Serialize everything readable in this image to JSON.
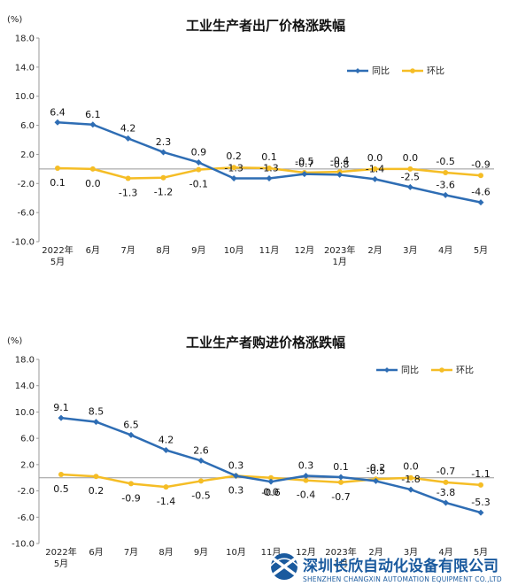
{
  "colors": {
    "yoy": "#2e6db4",
    "mom": "#f5bd25",
    "axis": "#999999",
    "watermark": "#1a5a9e"
  },
  "chart_data": [
    {
      "type": "line",
      "title": "工业生产者出厂价格涨跌幅",
      "unit": "(%)",
      "categories": [
        "2022年|5月",
        "6月",
        "7月",
        "8月",
        "9月",
        "10月",
        "11月",
        "12月",
        "2023年|1月",
        "2月",
        "3月",
        "4月",
        "5月"
      ],
      "ylim": [
        -10.0,
        18.0
      ],
      "yticks": [
        "18.0",
        "14.0",
        "10.0",
        "6.0",
        "2.0",
        "-2.0",
        "-6.0",
        "-10.0"
      ],
      "legend": {
        "position": "top-right"
      },
      "series": [
        {
          "name": "同比",
          "values": [
            6.4,
            6.1,
            4.2,
            2.3,
            0.9,
            -1.3,
            -1.3,
            -0.7,
            -0.8,
            -1.4,
            -2.5,
            -3.6,
            -4.6
          ],
          "labels": [
            "6.4",
            "6.1",
            "4.2",
            "2.3",
            "0.9",
            "-1.3",
            "-1.3",
            "-0.7",
            "-0.8",
            "-1.4",
            "-2.5",
            "-3.6",
            "-4.6"
          ]
        },
        {
          "name": "环比",
          "values": [
            0.1,
            0.0,
            -1.3,
            -1.2,
            -0.1,
            0.2,
            0.1,
            -0.5,
            -0.4,
            0.0,
            0.0,
            -0.5,
            -0.9
          ],
          "labels": [
            "0.1",
            "0.0",
            "-1.3",
            "-1.2",
            "-0.1",
            "0.2",
            "0.1",
            "-0.5",
            "-0.4",
            "0.0",
            "0.0",
            "-0.5",
            "-0.9"
          ]
        }
      ]
    },
    {
      "type": "line",
      "title": "工业生产者购进价格涨跌幅",
      "unit": "(%)",
      "categories": [
        "2022年|5月",
        "6月",
        "7月",
        "8月",
        "9月",
        "10月",
        "11月",
        "12月",
        "2023年|1月",
        "2月",
        "3月",
        "4月",
        "5月"
      ],
      "ylim": [
        -10.0,
        18.0
      ],
      "yticks": [
        "18.0",
        "14.0",
        "10.0",
        "6.0",
        "2.0",
        "-2.0",
        "-6.0",
        "-10.0"
      ],
      "legend": {
        "position": "top-right"
      },
      "series": [
        {
          "name": "同比",
          "values": [
            9.1,
            8.5,
            6.5,
            4.2,
            2.6,
            0.3,
            -0.6,
            0.3,
            0.1,
            -0.5,
            -1.8,
            -3.8,
            -5.3
          ],
          "labels": [
            "9.1",
            "8.5",
            "6.5",
            "4.2",
            "2.6",
            "0.3",
            "-0.6",
            "0.3",
            "0.1",
            "-0.5",
            "-1.8",
            "-3.8",
            "-5.3"
          ]
        },
        {
          "name": "环比",
          "values": [
            0.5,
            0.2,
            -0.9,
            -1.4,
            -0.5,
            0.3,
            0.0,
            -0.4,
            -0.7,
            -0.2,
            0.0,
            -0.7,
            -1.1
          ],
          "labels": [
            "0.5",
            "0.2",
            "-0.9",
            "-1.4",
            "-0.5",
            "0.3",
            "0.0",
            "-0.4",
            "-0.7",
            "-0.2",
            "0.0",
            "-0.7",
            "-1.1"
          ]
        }
      ]
    }
  ],
  "watermark": {
    "name": "深圳长欣自动化设备有限公司",
    "english": "SHENZHEN CHANGXIN AUTOMATION EQUIPMENT CO.,LTD"
  }
}
